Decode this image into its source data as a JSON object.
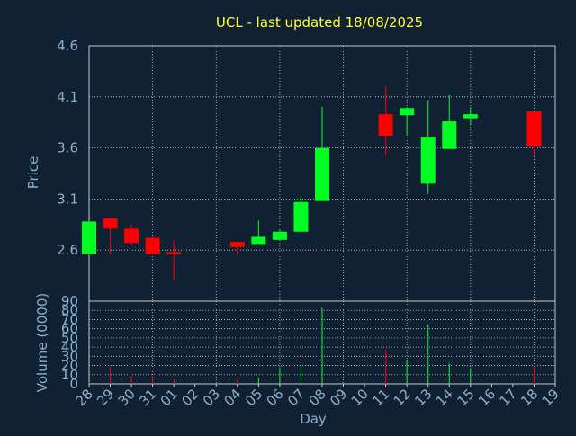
{
  "chart_data": {
    "type": "candlestick",
    "title": "UCL - last updated 18/08/2025",
    "categories": [
      "28",
      "29",
      "30",
      "31",
      "01",
      "02",
      "03",
      "04",
      "05",
      "06",
      "07",
      "08",
      "09",
      "10",
      "11",
      "12",
      "13",
      "14",
      "15",
      "16",
      "17",
      "18",
      "19"
    ],
    "price": {
      "ylabel": "Price",
      "ylim": [
        2.1,
        4.6
      ],
      "yticks": [
        "2.6",
        "3.1",
        "3.6",
        "4.1",
        "4.6"
      ],
      "candles": [
        {
          "day": "28",
          "open": 2.56,
          "high": 2.88,
          "low": 2.56,
          "close": 2.88
        },
        {
          "day": "29",
          "open": 2.91,
          "high": 2.91,
          "low": 2.56,
          "close": 2.81
        },
        {
          "day": "30",
          "open": 2.81,
          "high": 2.85,
          "low": 2.65,
          "close": 2.67
        },
        {
          "day": "31",
          "open": 2.72,
          "high": 2.72,
          "low": 2.56,
          "close": 2.56
        },
        {
          "day": "01",
          "open": 2.58,
          "high": 2.7,
          "low": 2.3,
          "close": 2.56
        },
        {
          "day": "04",
          "open": 2.68,
          "high": 2.68,
          "low": 2.55,
          "close": 2.63
        },
        {
          "day": "05",
          "open": 2.66,
          "high": 2.89,
          "low": 2.66,
          "close": 2.73
        },
        {
          "day": "06",
          "open": 2.7,
          "high": 2.8,
          "low": 2.7,
          "close": 2.78
        },
        {
          "day": "07",
          "open": 2.78,
          "high": 3.14,
          "low": 2.78,
          "close": 3.07
        },
        {
          "day": "08",
          "open": 3.08,
          "high": 4.0,
          "low": 3.08,
          "close": 3.6
        },
        {
          "day": "11",
          "open": 3.93,
          "high": 4.2,
          "low": 3.53,
          "close": 3.72
        },
        {
          "day": "12",
          "open": 3.92,
          "high": 4.0,
          "low": 3.73,
          "close": 3.99
        },
        {
          "day": "13",
          "open": 3.25,
          "high": 4.07,
          "low": 3.15,
          "close": 3.71
        },
        {
          "day": "14",
          "open": 3.59,
          "high": 4.12,
          "low": 3.59,
          "close": 3.86
        },
        {
          "day": "15",
          "open": 3.89,
          "high": 4.0,
          "low": 3.82,
          "close": 3.93
        },
        {
          "day": "18",
          "open": 3.96,
          "high": 3.96,
          "low": 3.53,
          "close": 3.62
        }
      ]
    },
    "volume": {
      "ylabel": "Volume (0000)",
      "ylim": [
        0,
        90
      ],
      "yticks": [
        "0",
        "10",
        "20",
        "30",
        "40",
        "50",
        "60",
        "70",
        "80",
        "90"
      ],
      "bars": [
        {
          "day": "28",
          "value": 2,
          "direction": "up"
        },
        {
          "day": "29",
          "value": 19,
          "direction": "down"
        },
        {
          "day": "30",
          "value": 9,
          "direction": "down"
        },
        {
          "day": "31",
          "value": 6,
          "direction": "down"
        },
        {
          "day": "01",
          "value": 5,
          "direction": "down"
        },
        {
          "day": "04",
          "value": 6,
          "direction": "down"
        },
        {
          "day": "05",
          "value": 7,
          "direction": "up"
        },
        {
          "day": "06",
          "value": 18,
          "direction": "up"
        },
        {
          "day": "07",
          "value": 21,
          "direction": "up"
        },
        {
          "day": "08",
          "value": 83,
          "direction": "up"
        },
        {
          "day": "11",
          "value": 37,
          "direction": "down"
        },
        {
          "day": "12",
          "value": 25,
          "direction": "up"
        },
        {
          "day": "13",
          "value": 65,
          "direction": "up"
        },
        {
          "day": "14",
          "value": 22,
          "direction": "up"
        },
        {
          "day": "15",
          "value": 17,
          "direction": "up"
        },
        {
          "day": "18",
          "value": 19,
          "direction": "down"
        }
      ]
    },
    "xlabel": "Day",
    "grid": true,
    "colors": {
      "background": "#0f2133",
      "up": "#00ff22",
      "down": "#ff0000",
      "title": "#ffff33",
      "axis_text": "#8fb0cc",
      "grid": "#c9c9c9"
    }
  }
}
